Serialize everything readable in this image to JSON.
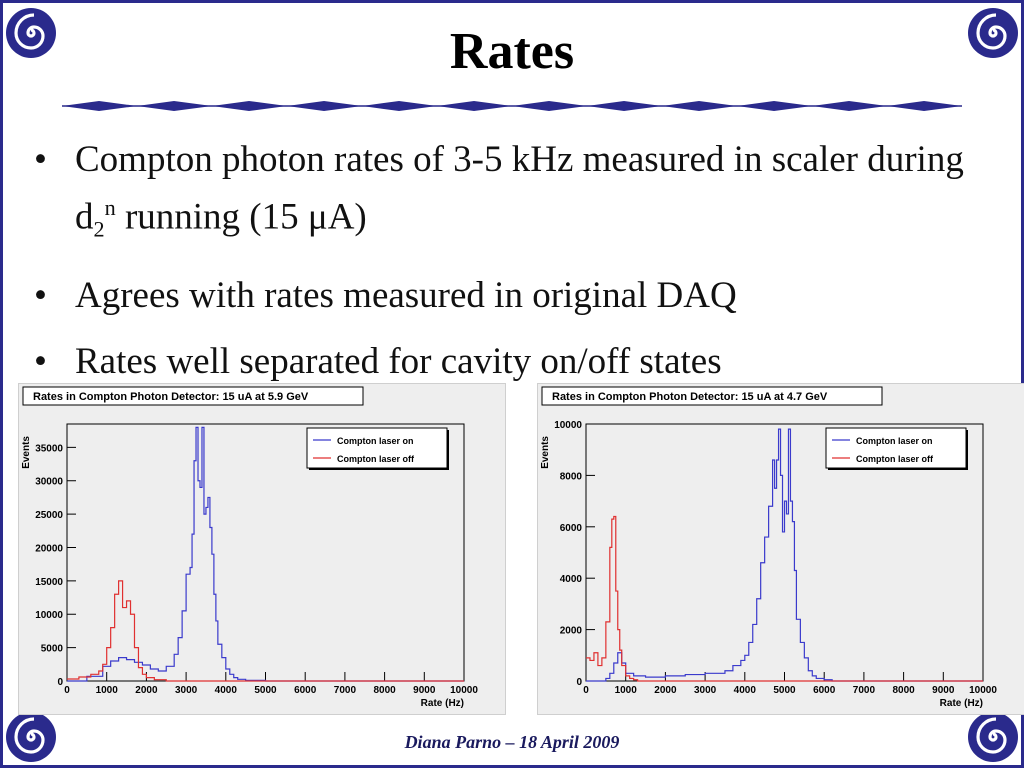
{
  "slide": {
    "title": "Rates",
    "bullets": [
      {
        "parts": [
          "Compton photon rates of 3-5 kHz measured in scaler during d",
          "2",
          "n",
          " running (15 μA)"
        ]
      },
      {
        "text": "Agrees with rates measured in original DAQ"
      },
      {
        "text": "Rates well separated for cavity on/off states"
      }
    ],
    "bullet_symbol": "•",
    "footer": "Diana Parno – 18 April 2009"
  },
  "colors": {
    "frame": "#2a2a8c",
    "laser_on": "#3a3acc",
    "laser_off": "#e03030",
    "plot_bg": "#eeeeee"
  },
  "icons": {
    "corner": "spiral-icon"
  },
  "chart_data": [
    {
      "type": "line",
      "title": "Rates in Compton Photon Detector: 15 uA at 5.9 GeV",
      "xlabel": "Rate (Hz)",
      "ylabel": "Events",
      "xlim": [
        0,
        10000
      ],
      "ylim": [
        0,
        38500
      ],
      "xticks": [
        0,
        1000,
        2000,
        3000,
        4000,
        5000,
        6000,
        7000,
        8000,
        9000,
        10000
      ],
      "yticks": [
        0,
        5000,
        10000,
        15000,
        20000,
        25000,
        30000,
        35000
      ],
      "legend": "top-right",
      "series": [
        {
          "name": "Compton laser on",
          "color": "#3a3acc",
          "x": [
            0,
            500,
            900,
            1100,
            1300,
            1500,
            1700,
            1900,
            2100,
            2300,
            2500,
            2700,
            2800,
            2900,
            3000,
            3100,
            3150,
            3200,
            3250,
            3300,
            3350,
            3400,
            3450,
            3500,
            3550,
            3600,
            3650,
            3700,
            3750,
            3800,
            3900,
            4000,
            4100,
            4200,
            4300,
            4500,
            5000,
            6000,
            10000
          ],
          "y": [
            0,
            700,
            2200,
            3000,
            3500,
            3200,
            2800,
            2400,
            1800,
            1500,
            2200,
            4000,
            6500,
            10500,
            16000,
            17000,
            22000,
            33000,
            38000,
            30000,
            29000,
            38000,
            25000,
            26000,
            27500,
            23000,
            19000,
            13000,
            9000,
            5500,
            3500,
            1800,
            1000,
            500,
            250,
            100,
            0,
            0,
            0
          ]
        },
        {
          "name": "Compton laser off",
          "color": "#e03030",
          "x": [
            0,
            300,
            600,
            800,
            900,
            1000,
            1100,
            1200,
            1300,
            1400,
            1500,
            1600,
            1700,
            1800,
            1900,
            2000,
            2200,
            2500,
            10000
          ],
          "y": [
            300,
            600,
            1000,
            1500,
            2500,
            5000,
            8000,
            13000,
            15000,
            11000,
            12000,
            10000,
            5000,
            2000,
            1000,
            500,
            200,
            0,
            0
          ]
        }
      ]
    },
    {
      "type": "line",
      "title": "Rates in Compton Photon Detector: 15 uA at 4.7 GeV",
      "xlabel": "Rate (Hz)",
      "ylabel": "Events",
      "xlim": [
        0,
        10000
      ],
      "ylim": [
        0,
        10000
      ],
      "xticks": [
        0,
        1000,
        2000,
        3000,
        4000,
        5000,
        6000,
        7000,
        8000,
        9000,
        10000
      ],
      "yticks": [
        0,
        2000,
        4000,
        6000,
        8000,
        10000
      ],
      "legend": "top-right",
      "series": [
        {
          "name": "Compton laser on",
          "color": "#3a3acc",
          "x": [
            0,
            500,
            600,
            700,
            800,
            900,
            1000,
            1200,
            1500,
            2000,
            2500,
            3000,
            3500,
            3700,
            3900,
            4000,
            4100,
            4200,
            4300,
            4400,
            4500,
            4550,
            4600,
            4700,
            4750,
            4800,
            4850,
            4900,
            4950,
            5000,
            5050,
            5100,
            5150,
            5200,
            5250,
            5300,
            5400,
            5500,
            5600,
            5700,
            5800,
            6000,
            6200,
            6500,
            10000
          ],
          "y": [
            0,
            100,
            300,
            700,
            1100,
            700,
            300,
            200,
            150,
            200,
            250,
            300,
            400,
            600,
            800,
            1000,
            1500,
            2200,
            3200,
            4600,
            5600,
            5600,
            6800,
            8600,
            7500,
            8600,
            9800,
            8000,
            5800,
            7000,
            6500,
            9800,
            7000,
            6200,
            4300,
            2400,
            1500,
            900,
            400,
            200,
            100,
            50,
            0,
            0,
            0
          ]
        },
        {
          "name": "Compton laser off",
          "color": "#e03030",
          "x": [
            0,
            100,
            200,
            300,
            400,
            500,
            600,
            650,
            700,
            750,
            800,
            850,
            900,
            1000,
            1100,
            1200,
            1300,
            10000
          ],
          "y": [
            900,
            800,
            1100,
            600,
            900,
            2300,
            5200,
            6300,
            6400,
            3500,
            2000,
            1200,
            600,
            200,
            100,
            50,
            0,
            0
          ]
        }
      ]
    }
  ]
}
